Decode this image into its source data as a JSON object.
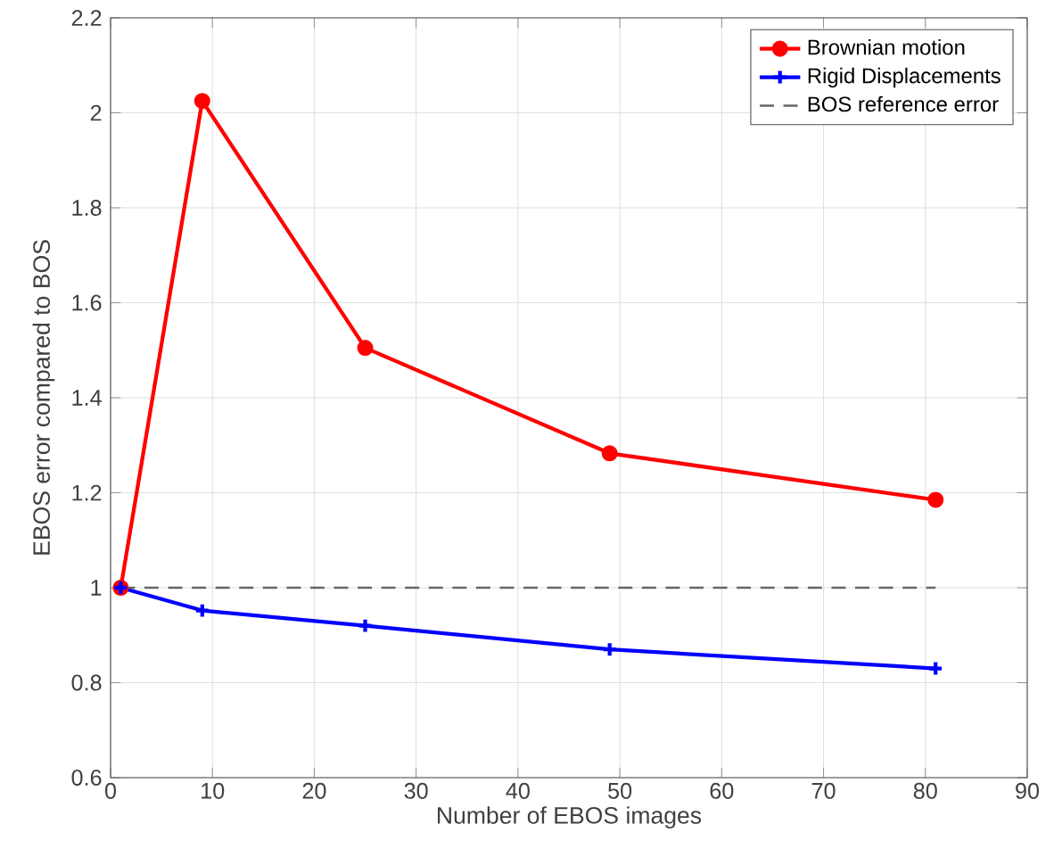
{
  "chart_data": {
    "type": "line",
    "xlabel": "Number of EBOS images",
    "ylabel": "EBOS error compared to BOS",
    "series": [
      {
        "name": "Brownian motion",
        "color": "#ff0000",
        "marker": "circle",
        "x": [
          1,
          9,
          25,
          49,
          81
        ],
        "values": [
          1.0,
          2.025,
          1.505,
          1.283,
          1.185
        ]
      },
      {
        "name": "Rigid Displacements",
        "color": "#0000ff",
        "marker": "cross",
        "x": [
          1,
          9,
          25,
          49,
          81
        ],
        "values": [
          1.0,
          0.952,
          0.92,
          0.87,
          0.83
        ]
      },
      {
        "name": "BOS reference error",
        "color": "#666666",
        "marker": "none",
        "line_style": "dashed",
        "x": [
          1,
          81
        ],
        "values": [
          1,
          1
        ]
      }
    ],
    "xlim": [
      0,
      90
    ],
    "ylim": [
      0.6,
      2.2
    ],
    "xticks": [
      0,
      10,
      20,
      30,
      40,
      50,
      60,
      70,
      80,
      90
    ],
    "yticks": [
      0.6,
      0.8,
      1,
      1.2,
      1.4,
      1.6,
      1.8,
      2,
      2.2
    ],
    "grid": true,
    "legend": "top right"
  }
}
